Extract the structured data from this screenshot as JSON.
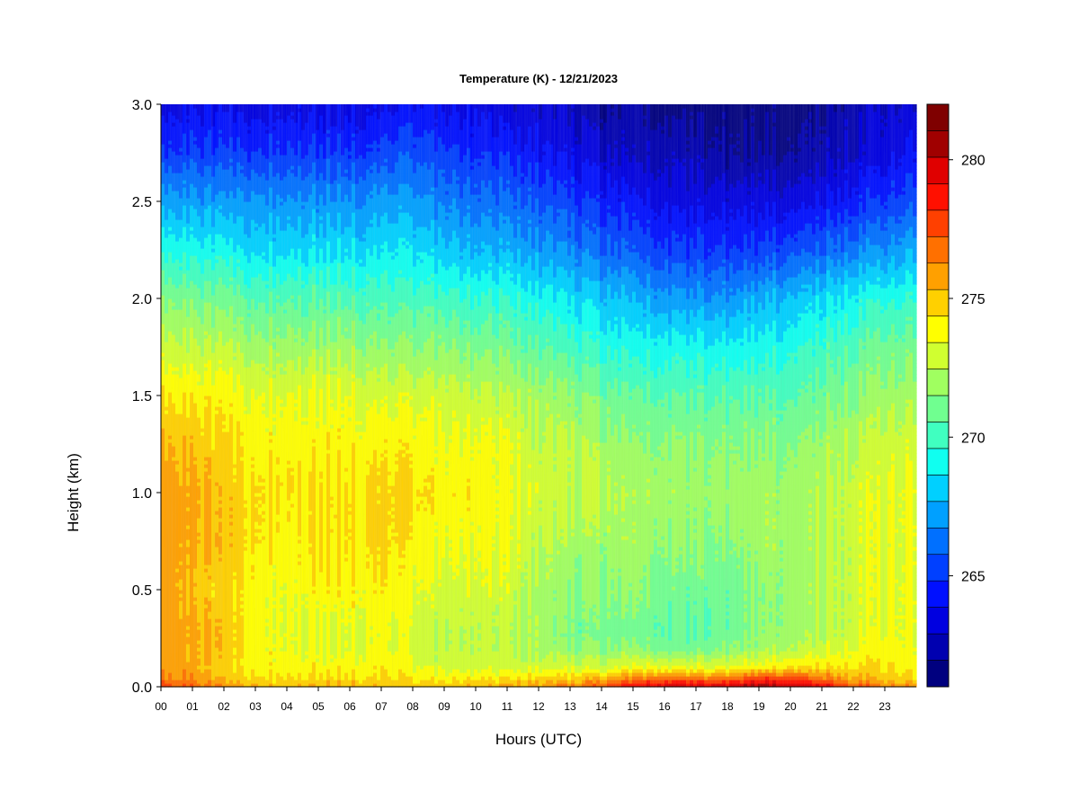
{
  "chart_data": {
    "type": "heatmap",
    "title": "Temperature (K) - 12/21/2023",
    "xlabel": "Hours (UTC)",
    "ylabel": "Height (km)",
    "x_ticks": [
      "00",
      "01",
      "02",
      "03",
      "04",
      "05",
      "06",
      "07",
      "08",
      "09",
      "10",
      "11",
      "12",
      "13",
      "14",
      "15",
      "16",
      "17",
      "18",
      "19",
      "20",
      "21",
      "22",
      "23"
    ],
    "xlim": [
      0,
      24
    ],
    "y_ticks": [
      "0.0",
      "0.5",
      "1.0",
      "1.5",
      "2.0",
      "2.5",
      "3.0"
    ],
    "ylim": [
      0,
      3.0
    ],
    "colorbar": {
      "ticks": [
        "265",
        "270",
        "275",
        "280"
      ],
      "range": [
        261,
        282
      ],
      "levels": 21,
      "colormap": "jet",
      "colors": [
        "#00007f",
        "#0000b0",
        "#0000e0",
        "#0010ff",
        "#0040ff",
        "#0070ff",
        "#00a0ff",
        "#00d0ff",
        "#10fff0",
        "#40ffc0",
        "#70ff90",
        "#a0ff60",
        "#d0ff30",
        "#ffff00",
        "#ffd000",
        "#ffa000",
        "#ff7000",
        "#ff4000",
        "#ff1000",
        "#e00000",
        "#a00000",
        "#7f0000"
      ]
    },
    "heights_km": [
      0.0,
      0.05,
      0.1,
      0.2,
      0.3,
      0.5,
      0.75,
      1.0,
      1.25,
      1.5,
      1.75,
      2.0,
      2.25,
      2.5,
      2.75,
      3.0
    ],
    "hours": [
      0,
      1,
      2,
      3,
      4,
      5,
      6,
      7,
      8,
      9,
      10,
      11,
      12,
      13,
      14,
      15,
      16,
      17,
      18,
      19,
      20,
      21,
      22,
      23,
      24
    ],
    "temperature_K": [
      [
        278.0,
        277.0,
        276.0,
        275.5,
        275.0,
        275.5,
        275.5,
        275.0,
        275.0,
        275.0,
        275.0,
        275.5,
        276.0,
        276.5,
        277.5,
        279.0,
        280.0,
        280.0,
        280.0,
        281.0,
        280.5,
        279.5,
        277.5,
        276.5,
        276.0
      ],
      [
        276.5,
        276.0,
        275.0,
        274.5,
        274.5,
        274.5,
        274.5,
        274.5,
        274.0,
        274.0,
        274.0,
        274.0,
        274.5,
        274.5,
        275.0,
        276.0,
        276.5,
        276.5,
        276.5,
        277.5,
        277.5,
        276.5,
        275.5,
        275.0,
        274.5
      ],
      [
        276.0,
        275.5,
        274.5,
        274.0,
        274.0,
        274.0,
        274.0,
        274.0,
        273.5,
        273.0,
        273.0,
        273.0,
        273.0,
        273.0,
        273.0,
        273.5,
        273.5,
        273.5,
        273.5,
        274.0,
        274.5,
        274.5,
        274.5,
        274.5,
        274.0
      ],
      [
        276.0,
        275.5,
        275.0,
        274.0,
        273.5,
        273.5,
        273.5,
        273.5,
        273.0,
        272.5,
        272.5,
        272.5,
        272.0,
        271.5,
        271.5,
        271.5,
        271.0,
        271.0,
        271.5,
        272.0,
        272.5,
        273.0,
        273.5,
        274.0,
        273.5
      ],
      [
        276.0,
        275.5,
        275.0,
        274.0,
        273.5,
        273.5,
        273.5,
        273.5,
        273.0,
        272.5,
        272.5,
        272.5,
        272.0,
        271.0,
        271.0,
        271.0,
        270.5,
        270.5,
        271.0,
        271.5,
        272.0,
        272.5,
        273.0,
        273.5,
        273.5
      ],
      [
        276.0,
        275.0,
        274.5,
        274.0,
        273.5,
        274.0,
        274.0,
        274.0,
        273.5,
        273.0,
        273.0,
        273.0,
        272.0,
        271.5,
        271.5,
        271.5,
        271.0,
        271.0,
        271.0,
        271.5,
        272.0,
        272.5,
        273.0,
        273.5,
        273.5
      ],
      [
        276.0,
        275.5,
        275.0,
        274.5,
        274.0,
        274.5,
        274.5,
        274.5,
        274.0,
        273.5,
        273.5,
        273.5,
        272.5,
        272.0,
        272.0,
        272.0,
        271.5,
        271.5,
        271.5,
        272.0,
        272.0,
        272.5,
        273.0,
        273.5,
        273.5
      ],
      [
        276.0,
        275.5,
        275.0,
        274.5,
        274.5,
        274.5,
        274.5,
        274.5,
        274.5,
        274.0,
        274.0,
        273.5,
        273.0,
        272.5,
        272.5,
        272.0,
        272.0,
        272.0,
        272.0,
        272.0,
        272.0,
        272.5,
        273.0,
        273.5,
        273.5
      ],
      [
        275.5,
        275.0,
        274.5,
        274.0,
        274.0,
        274.0,
        274.0,
        274.0,
        274.0,
        273.5,
        273.5,
        273.5,
        272.5,
        272.5,
        272.0,
        271.5,
        271.5,
        271.5,
        271.5,
        271.5,
        271.5,
        272.0,
        272.5,
        273.0,
        273.0
      ],
      [
        274.5,
        274.0,
        274.0,
        273.5,
        273.5,
        273.5,
        273.5,
        273.0,
        273.0,
        273.0,
        272.5,
        272.5,
        272.0,
        271.5,
        271.0,
        270.5,
        270.5,
        270.5,
        270.5,
        270.5,
        270.5,
        271.0,
        271.5,
        272.0,
        272.0
      ],
      [
        273.0,
        272.5,
        272.5,
        272.0,
        272.0,
        272.0,
        272.0,
        271.5,
        271.5,
        271.5,
        271.0,
        271.0,
        270.5,
        270.0,
        269.5,
        269.0,
        269.0,
        269.0,
        269.0,
        269.0,
        269.5,
        270.0,
        270.5,
        271.0,
        271.0
      ],
      [
        271.5,
        271.0,
        271.0,
        270.5,
        270.5,
        270.5,
        270.5,
        270.0,
        270.0,
        270.0,
        269.5,
        269.5,
        269.0,
        268.5,
        268.0,
        267.5,
        267.0,
        267.0,
        267.0,
        267.5,
        268.0,
        268.5,
        269.0,
        269.5,
        269.5
      ],
      [
        269.5,
        269.0,
        269.0,
        268.5,
        268.5,
        268.5,
        268.5,
        268.5,
        268.5,
        268.0,
        267.5,
        267.5,
        267.0,
        266.5,
        266.0,
        265.5,
        265.0,
        265.0,
        265.0,
        265.0,
        265.5,
        266.0,
        266.5,
        267.0,
        267.5
      ],
      [
        267.5,
        267.0,
        267.0,
        267.0,
        267.0,
        267.0,
        267.0,
        267.0,
        267.0,
        266.5,
        266.0,
        266.0,
        265.5,
        265.0,
        264.5,
        264.0,
        263.5,
        263.5,
        263.5,
        263.5,
        263.5,
        264.0,
        264.5,
        265.0,
        265.5
      ],
      [
        265.0,
        265.0,
        265.0,
        265.0,
        265.0,
        265.0,
        265.0,
        265.0,
        265.5,
        265.0,
        264.5,
        264.5,
        264.0,
        263.5,
        263.0,
        262.5,
        262.5,
        262.5,
        262.0,
        262.0,
        262.0,
        262.5,
        263.0,
        263.5,
        264.0
      ],
      [
        263.5,
        263.5,
        263.5,
        263.5,
        263.5,
        263.5,
        263.5,
        263.5,
        264.0,
        263.5,
        263.5,
        263.0,
        263.0,
        262.5,
        262.0,
        262.0,
        261.5,
        261.5,
        261.5,
        261.5,
        261.5,
        262.0,
        262.5,
        263.0,
        263.0
      ]
    ]
  }
}
